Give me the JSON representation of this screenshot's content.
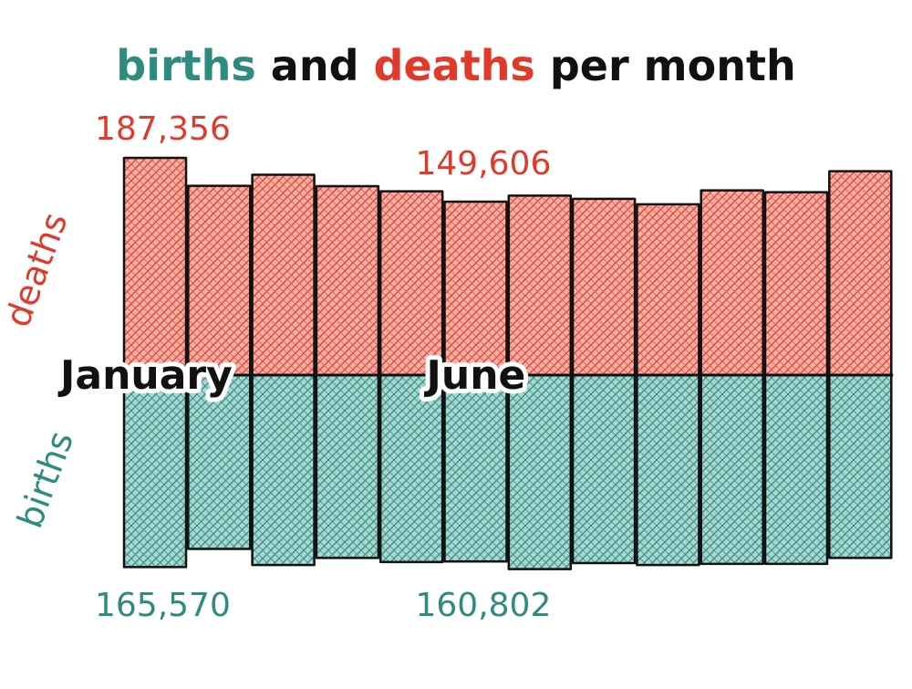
{
  "colors": {
    "births": "#2e8b80",
    "deaths": "#e03a2a",
    "ink": "#111111"
  },
  "chart_data": {
    "type": "bar",
    "title": "",
    "title_parts": [
      "births",
      " and ",
      "deaths",
      " per month"
    ],
    "categories": [
      "January",
      "",
      "",
      "",
      "",
      "June",
      "",
      "",
      "",
      "",
      "",
      ""
    ],
    "series": [
      {
        "name": "deaths",
        "values": [
          187356,
          163200,
          172800,
          163000,
          158500,
          149606,
          154800,
          152000,
          147300,
          159300,
          157700,
          175800
        ]
      },
      {
        "name": "births",
        "values": [
          165570,
          150000,
          163800,
          157700,
          161300,
          160802,
          167400,
          162200,
          163800,
          162900,
          162900,
          157700
        ]
      }
    ],
    "annotations": [
      {
        "series": "deaths",
        "index": 0,
        "text": "187,356"
      },
      {
        "series": "deaths",
        "index": 5,
        "text": "149,606"
      },
      {
        "series": "births",
        "index": 0,
        "text": "165,570"
      },
      {
        "series": "births",
        "index": 5,
        "text": "160,802"
      }
    ],
    "ylim": [
      0,
      187356
    ],
    "grid": false,
    "legend": "none"
  }
}
